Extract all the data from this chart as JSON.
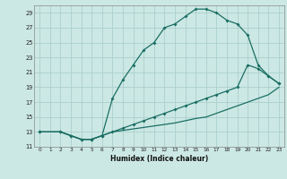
{
  "xlabel": "Humidex (Indice chaleur)",
  "bg_color": "#cce8e4",
  "grid_color": "#aacfcc",
  "line_color": "#1a6e64",
  "xlim": [
    -0.5,
    23.5
  ],
  "ylim": [
    11,
    30
  ],
  "xticks": [
    0,
    1,
    2,
    3,
    4,
    5,
    6,
    7,
    8,
    9,
    10,
    11,
    12,
    13,
    14,
    15,
    16,
    17,
    18,
    19,
    20,
    21,
    22,
    23
  ],
  "yticks": [
    11,
    13,
    15,
    17,
    19,
    21,
    23,
    25,
    27,
    29
  ],
  "line1_x": [
    0,
    2,
    3,
    4,
    5,
    6,
    7,
    8,
    9,
    10,
    11,
    12,
    13,
    14,
    15,
    16,
    17,
    18,
    19,
    20,
    21,
    22,
    23
  ],
  "line1_y": [
    13,
    13,
    12.5,
    12,
    12,
    12.5,
    17.5,
    20,
    22,
    24,
    25,
    27,
    27.5,
    28.5,
    29.5,
    29.5,
    29,
    28,
    27.5,
    26,
    22,
    20.5,
    19.5
  ],
  "line2_x": [
    0,
    2,
    3,
    4,
    5,
    6,
    7,
    8,
    9,
    10,
    11,
    12,
    13,
    14,
    15,
    16,
    17,
    18,
    19,
    20,
    21,
    22,
    23
  ],
  "line2_y": [
    13,
    13,
    12.5,
    12,
    12,
    12.5,
    13,
    13.5,
    14,
    14.5,
    15,
    15.5,
    16,
    16.5,
    17,
    17.5,
    18,
    18.5,
    19,
    22,
    21.5,
    20.5,
    19.5
  ],
  "line3_x": [
    0,
    2,
    3,
    4,
    5,
    6,
    7,
    8,
    9,
    10,
    11,
    12,
    13,
    14,
    15,
    16,
    17,
    18,
    19,
    20,
    21,
    22,
    23
  ],
  "line3_y": [
    13,
    13,
    12.5,
    12,
    12,
    12.5,
    13,
    13.2,
    13.4,
    13.6,
    13.8,
    14,
    14.2,
    14.5,
    14.8,
    15,
    15.5,
    16,
    16.5,
    17,
    17.5,
    18,
    19
  ]
}
